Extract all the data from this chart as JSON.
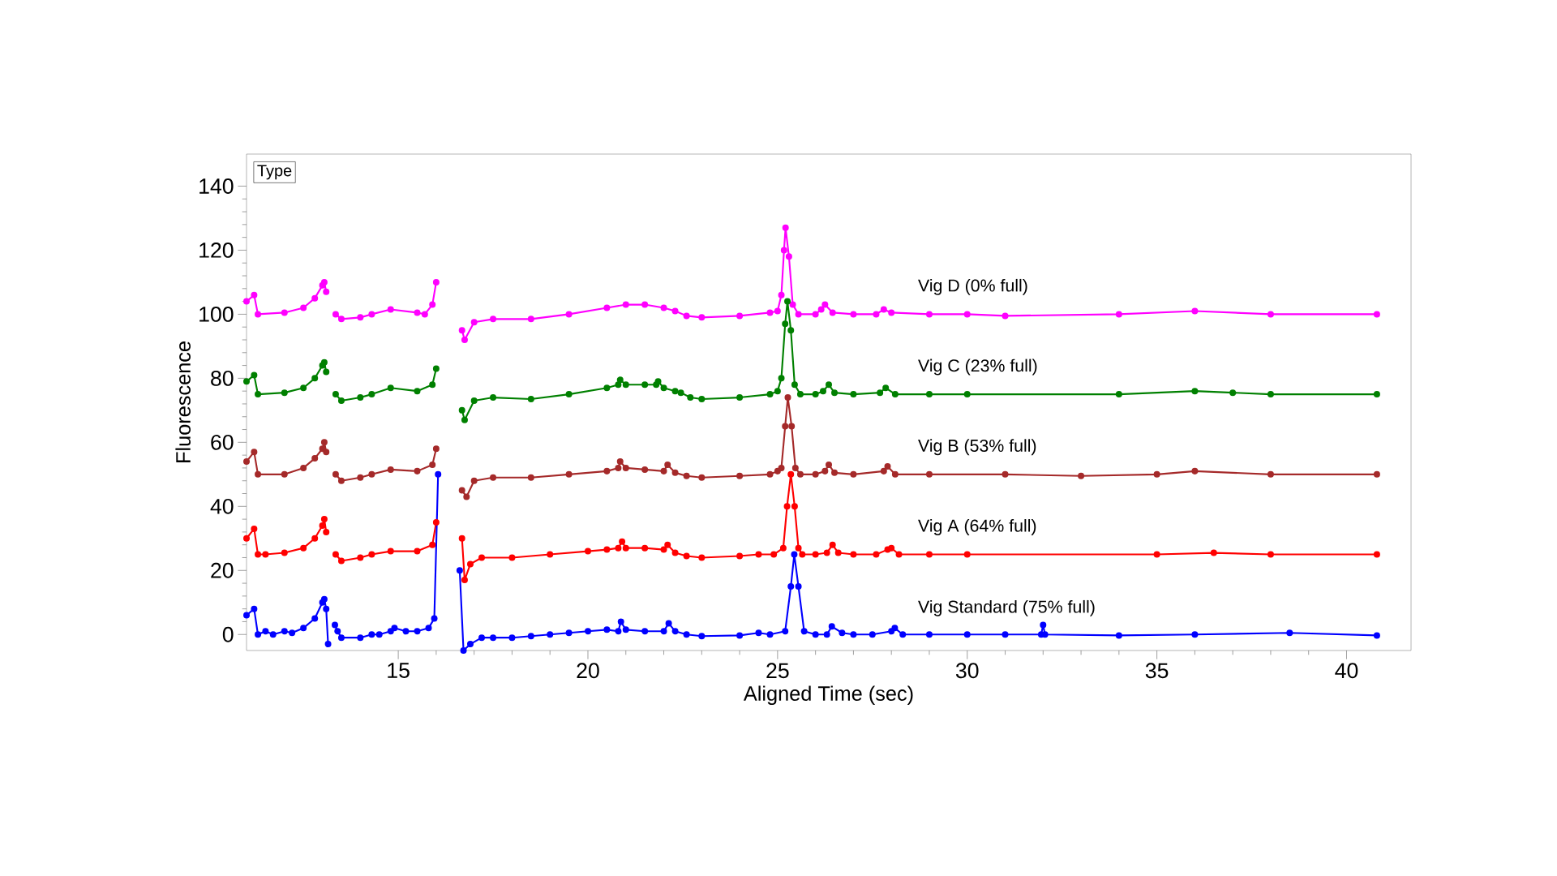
{
  "chart_data": {
    "type": "line",
    "xlabel": "Aligned Time (sec)",
    "ylabel": "Fluorescence",
    "legend_title": "Type",
    "xlim": [
      11,
      41.7
    ],
    "ylim": [
      -5,
      150
    ],
    "xticks": [
      15,
      20,
      25,
      30,
      35,
      40
    ],
    "yticks": [
      0,
      20,
      40,
      60,
      80,
      100,
      120,
      140
    ],
    "marker": "circle",
    "series": [
      {
        "name": "Vig D (0% full)",
        "color": "#ff00ff",
        "x": [
          11.0,
          11.2,
          11.3,
          12,
          12.5,
          12.8,
          13.0,
          13.05,
          13.1,
          13.2,
          13.35,
          13.5,
          14,
          14.3,
          14.8,
          15.5,
          15.7,
          15.9,
          16.0,
          16.08,
          16.6,
          16.68,
          16.75,
          17.0,
          17.5,
          18.5,
          19.5,
          20.5,
          21,
          21.5,
          22,
          22.3,
          22.6,
          23,
          24,
          24.8,
          25.0,
          25.1,
          25.17,
          25.21,
          25.3,
          25.4,
          25.55,
          26.0,
          26.15,
          26.25,
          26.45,
          27,
          27.6,
          27.8,
          28.0,
          29,
          30,
          31,
          34,
          36,
          38,
          40.8
        ],
        "values": [
          104,
          106,
          100,
          100.5,
          102,
          105,
          109,
          110,
          107,
          null,
          100,
          98.5,
          99,
          100,
          101.5,
          100.5,
          100,
          103,
          110,
          null,
          null,
          95,
          92,
          97.5,
          98.5,
          98.5,
          100,
          102,
          103,
          103,
          102,
          101,
          99.5,
          99,
          99.5,
          100.5,
          101,
          106,
          120,
          127,
          118,
          103,
          100,
          100,
          101.5,
          103,
          100.5,
          100,
          100,
          101.5,
          100.5,
          100,
          100,
          99.5,
          100,
          101,
          100,
          100
        ]
      },
      {
        "name": "Vig C (23% full)",
        "color": "#008000",
        "x": [
          11.0,
          11.2,
          11.3,
          12,
          12.5,
          12.8,
          13.0,
          13.05,
          13.1,
          13.2,
          13.35,
          13.5,
          14,
          14.3,
          14.8,
          15.5,
          15.9,
          16.0,
          16.08,
          16.6,
          16.68,
          16.75,
          17.0,
          17.5,
          18.5,
          19.5,
          20.5,
          20.8,
          20.85,
          21.0,
          21.5,
          21.8,
          21.85,
          22.0,
          22.3,
          22.45,
          22.7,
          23,
          24,
          24.8,
          25.0,
          25.1,
          25.2,
          25.26,
          25.35,
          25.45,
          25.6,
          26.0,
          26.2,
          26.35,
          26.5,
          27,
          27.7,
          27.85,
          28.1,
          29,
          30,
          34,
          36,
          37,
          38,
          40.8
        ],
        "values": [
          79,
          81,
          75,
          75.5,
          77,
          80,
          84,
          85,
          82,
          null,
          75,
          73,
          74,
          75,
          77,
          76,
          78,
          83,
          null,
          null,
          70,
          67,
          73,
          74,
          73.5,
          75,
          77,
          78,
          79.5,
          78,
          78,
          78,
          79,
          77,
          76,
          75.5,
          74,
          73.5,
          74,
          75,
          76,
          80,
          97,
          104,
          95,
          78,
          75,
          75,
          76,
          78,
          75.5,
          75,
          75.5,
          77,
          75,
          75,
          75,
          75,
          76,
          75.5,
          75,
          75
        ]
      },
      {
        "name": "Vig B (53% full)",
        "color": "#a52a2a",
        "x": [
          11.0,
          11.2,
          11.3,
          12,
          12.5,
          12.8,
          13.0,
          13.05,
          13.1,
          13.2,
          13.35,
          13.5,
          14,
          14.3,
          14.8,
          15.5,
          15.9,
          16.0,
          16.08,
          16.6,
          16.68,
          16.8,
          17.0,
          17.5,
          18.5,
          19.5,
          20.5,
          20.8,
          20.85,
          21.0,
          21.5,
          22.0,
          22.1,
          22.3,
          22.6,
          23,
          24,
          24.8,
          25.0,
          25.1,
          25.2,
          25.27,
          25.37,
          25.47,
          25.6,
          26.0,
          26.25,
          26.35,
          26.5,
          27,
          27.8,
          27.9,
          28.1,
          29,
          31,
          33,
          35,
          36,
          38,
          40.8
        ],
        "values": [
          54,
          57,
          50,
          50,
          52,
          55,
          58,
          60,
          57,
          null,
          50,
          48,
          49,
          50,
          51.5,
          51,
          53,
          58,
          null,
          null,
          45,
          43,
          48,
          49,
          49,
          50,
          51,
          52,
          54,
          52,
          51.5,
          51,
          53,
          50.5,
          49.5,
          49,
          49.5,
          50,
          51,
          52,
          65,
          74,
          65,
          52,
          50,
          50,
          51,
          53,
          50.5,
          50,
          51,
          52.5,
          50,
          50,
          50,
          49.5,
          50,
          51,
          50,
          50
        ]
      },
      {
        "name": "Vig A (64% full)",
        "color": "#ff0000",
        "x": [
          11.0,
          11.2,
          11.3,
          11.5,
          12,
          12.5,
          12.8,
          13.0,
          13.05,
          13.1,
          13.2,
          13.35,
          13.5,
          14,
          14.3,
          14.8,
          15.5,
          15.9,
          16.0,
          16.08,
          16.6,
          16.68,
          16.75,
          16.9,
          17.2,
          18,
          19,
          20,
          20.5,
          20.8,
          20.9,
          21.0,
          21.5,
          22.0,
          22.1,
          22.3,
          22.6,
          23,
          24,
          24.5,
          24.9,
          25.15,
          25.25,
          25.35,
          25.45,
          25.55,
          25.65,
          26.0,
          26.3,
          26.45,
          26.6,
          27,
          27.6,
          27.9,
          28.0,
          28.2,
          29,
          30,
          35,
          36.5,
          38,
          40.8
        ],
        "values": [
          30,
          33,
          25,
          25,
          25.5,
          27,
          30,
          34,
          36,
          32,
          null,
          25,
          23,
          24,
          25,
          26,
          26,
          28,
          35,
          null,
          null,
          30,
          17,
          22,
          24,
          24,
          25,
          26,
          26.5,
          27,
          29,
          27,
          27,
          26.5,
          28,
          25.5,
          24.5,
          24,
          24.5,
          25,
          25,
          27,
          40,
          50,
          40,
          27,
          25,
          25,
          25.5,
          28,
          25.5,
          25,
          25,
          26.5,
          27,
          25,
          25,
          25,
          25,
          25.5,
          25,
          25
        ]
      },
      {
        "name": "Vig Standard (75% full)",
        "color": "#0000ff",
        "x": [
          11.0,
          11.2,
          11.3,
          11.5,
          11.7,
          12.0,
          12.2,
          12.5,
          12.8,
          13.0,
          13.05,
          13.1,
          13.15,
          13.22,
          13.3,
          13.33,
          13.4,
          13.5,
          14.0,
          14.3,
          14.5,
          14.8,
          14.9,
          15.2,
          15.5,
          15.8,
          15.95,
          16.05,
          16.1,
          16.55,
          16.62,
          16.72,
          16.9,
          17.2,
          17.5,
          18.0,
          18.5,
          19,
          19.5,
          20,
          20.5,
          20.8,
          20.87,
          21.0,
          21.5,
          22.0,
          22.13,
          22.3,
          22.6,
          23,
          24,
          24.5,
          24.8,
          25.2,
          25.35,
          25.44,
          25.55,
          25.7,
          26.0,
          26.3,
          26.43,
          26.7,
          27,
          27.5,
          28.0,
          28.09,
          28.3,
          29,
          30,
          31,
          31.95,
          32.0,
          32.05,
          34,
          36,
          38.5,
          40.8
        ],
        "values": [
          6,
          8,
          0,
          1,
          0,
          1,
          0.5,
          2,
          5,
          10,
          11,
          8,
          -3,
          null,
          null,
          3,
          1,
          -1,
          -1,
          0,
          0,
          1,
          2,
          1,
          1,
          2,
          5,
          50,
          null,
          null,
          20,
          -5,
          -3,
          -1,
          -1,
          -1,
          -0.5,
          0,
          0.5,
          1,
          1.5,
          1,
          4,
          1.5,
          1,
          1,
          3.5,
          1,
          0,
          -0.5,
          -0.3,
          0.5,
          0,
          1,
          15,
          25,
          15,
          1,
          0,
          0,
          2.5,
          0.5,
          0,
          0,
          1,
          2,
          0,
          0,
          0,
          0,
          0,
          3,
          0,
          -0.3,
          0,
          0.5,
          -0.3
        ]
      }
    ]
  }
}
